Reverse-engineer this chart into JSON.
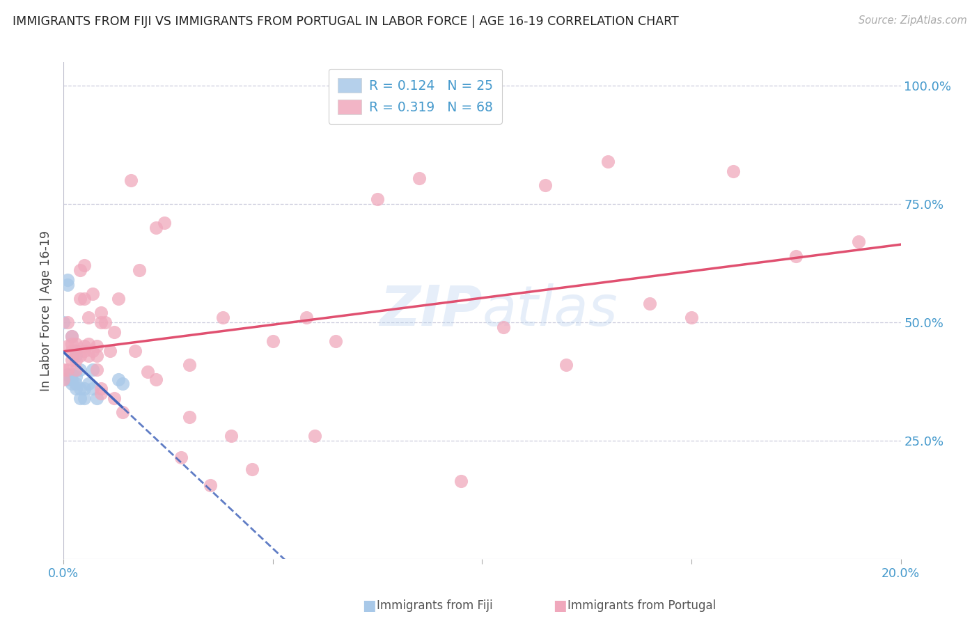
{
  "title": "IMMIGRANTS FROM FIJI VS IMMIGRANTS FROM PORTUGAL IN LABOR FORCE | AGE 16-19 CORRELATION CHART",
  "source": "Source: ZipAtlas.com",
  "ylabel": "In Labor Force | Age 16-19",
  "fiji_R": 0.124,
  "fiji_N": 25,
  "portugal_R": 0.319,
  "portugal_N": 68,
  "fiji_color": "#a8c8e8",
  "portugal_color": "#f0a8bc",
  "fiji_line_color": "#4466bb",
  "portugal_line_color": "#e05070",
  "label_color": "#4499cc",
  "watermark": "ZIPAtlas",
  "xmin": 0.0,
  "xmax": 0.2,
  "ymin": 0.0,
  "ymax": 1.05,
  "fiji_x": [
    0.0,
    0.001,
    0.001,
    0.001,
    0.001,
    0.002,
    0.002,
    0.002,
    0.002,
    0.003,
    0.003,
    0.003,
    0.003,
    0.003,
    0.004,
    0.004,
    0.004,
    0.005,
    0.005,
    0.006,
    0.007,
    0.007,
    0.008,
    0.013,
    0.014
  ],
  "fiji_y": [
    0.5,
    0.38,
    0.39,
    0.58,
    0.59,
    0.37,
    0.38,
    0.39,
    0.47,
    0.36,
    0.37,
    0.385,
    0.43,
    0.44,
    0.34,
    0.36,
    0.4,
    0.34,
    0.36,
    0.37,
    0.36,
    0.4,
    0.34,
    0.38,
    0.37
  ],
  "portugal_x": [
    0.0,
    0.0,
    0.001,
    0.001,
    0.001,
    0.002,
    0.002,
    0.002,
    0.002,
    0.003,
    0.003,
    0.003,
    0.003,
    0.004,
    0.004,
    0.004,
    0.005,
    0.005,
    0.005,
    0.005,
    0.006,
    0.006,
    0.006,
    0.007,
    0.007,
    0.008,
    0.008,
    0.008,
    0.009,
    0.009,
    0.009,
    0.009,
    0.01,
    0.011,
    0.012,
    0.012,
    0.013,
    0.014,
    0.016,
    0.017,
    0.018,
    0.02,
    0.022,
    0.022,
    0.024,
    0.028,
    0.03,
    0.03,
    0.035,
    0.038,
    0.04,
    0.045,
    0.05,
    0.058,
    0.06,
    0.065,
    0.075,
    0.085,
    0.095,
    0.105,
    0.115,
    0.12,
    0.13,
    0.14,
    0.15,
    0.16,
    0.175,
    0.19
  ],
  "portugal_y": [
    0.38,
    0.4,
    0.4,
    0.45,
    0.5,
    0.42,
    0.44,
    0.455,
    0.47,
    0.4,
    0.42,
    0.44,
    0.455,
    0.43,
    0.55,
    0.61,
    0.44,
    0.45,
    0.55,
    0.62,
    0.43,
    0.455,
    0.51,
    0.44,
    0.56,
    0.4,
    0.43,
    0.45,
    0.35,
    0.36,
    0.5,
    0.52,
    0.5,
    0.44,
    0.34,
    0.48,
    0.55,
    0.31,
    0.8,
    0.44,
    0.61,
    0.395,
    0.7,
    0.38,
    0.71,
    0.215,
    0.41,
    0.3,
    0.155,
    0.51,
    0.26,
    0.19,
    0.46,
    0.51,
    0.26,
    0.46,
    0.76,
    0.805,
    0.165,
    0.49,
    0.79,
    0.41,
    0.84,
    0.54,
    0.51,
    0.82,
    0.64,
    0.67
  ]
}
